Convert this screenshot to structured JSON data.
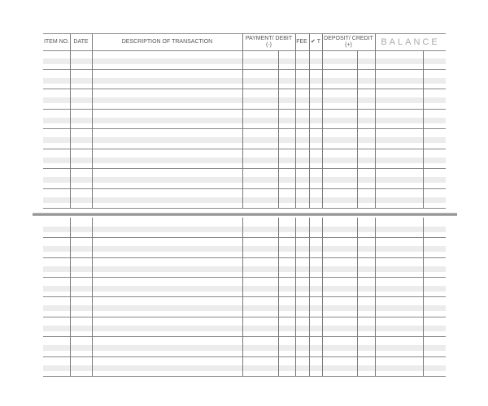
{
  "register": {
    "headers": {
      "item_no": "ITEM NO.",
      "date": "DATE",
      "description": "DESCRIPTION OF TRANSACTION",
      "payment": "PAYMENT/ DEBIT (-)",
      "fee": "FEE",
      "check": "✔ T",
      "deposit": "DEPOSIT/ CREDIT (+)",
      "balance": "BALANCE"
    },
    "colors": {
      "lines": "#8a8a8a",
      "bands": "#ececec"
    }
  }
}
